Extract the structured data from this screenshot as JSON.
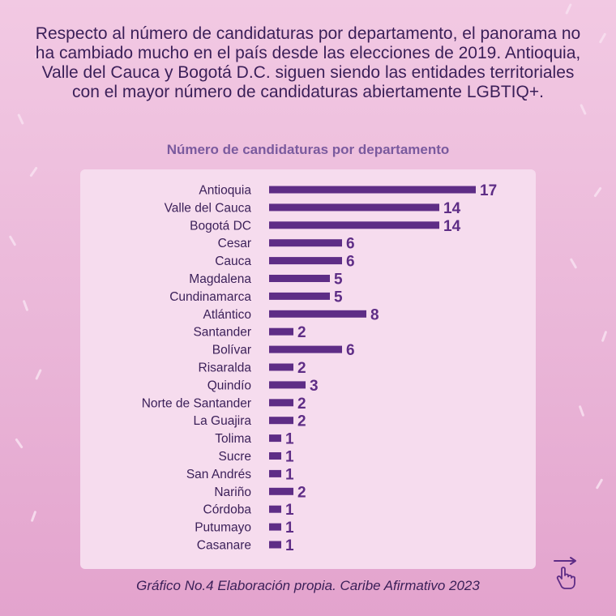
{
  "intro_text": "Respecto al número de candidaturas por departamento, el panorama no ha cambiado mucho en el país desde las elecciones de 2019. Antioquia, Valle del Cauca y Bogotá D.C. siguen siendo las entidades territoriales con el mayor número de candidaturas abiertamente LGBTIQ+.",
  "caption": "Gráfico No.4 Elaboración propia. Caribe Afirmativo 2023",
  "colors": {
    "bar": "#5e2d86",
    "label": "#3a1f58",
    "title": "#7a5a9e",
    "panel": "#f6dcee"
  },
  "icons": {
    "tap": "hand-pointer-icon"
  },
  "chart_data": {
    "type": "bar",
    "orientation": "horizontal",
    "title": "Número de candidaturas por departamento",
    "xlabel": "",
    "ylabel": "",
    "xlim": [
      0,
      17
    ],
    "grid": false,
    "categories": [
      "Antioquia",
      "Valle del Cauca",
      "Bogotá DC",
      "Cesar",
      "Cauca",
      "Magdalena",
      "Cundinamarca",
      "Atlántico",
      "Santander",
      "Bolívar",
      "Risaralda",
      "Quindío",
      "Norte de Santander",
      "La Guajira",
      "Tolima",
      "Sucre",
      "San Andrés",
      "Nariño",
      "Córdoba",
      "Putumayo",
      "Casanare"
    ],
    "values": [
      17,
      14,
      14,
      6,
      6,
      5,
      5,
      8,
      2,
      6,
      2,
      3,
      2,
      2,
      1,
      1,
      1,
      2,
      1,
      1,
      1
    ]
  }
}
